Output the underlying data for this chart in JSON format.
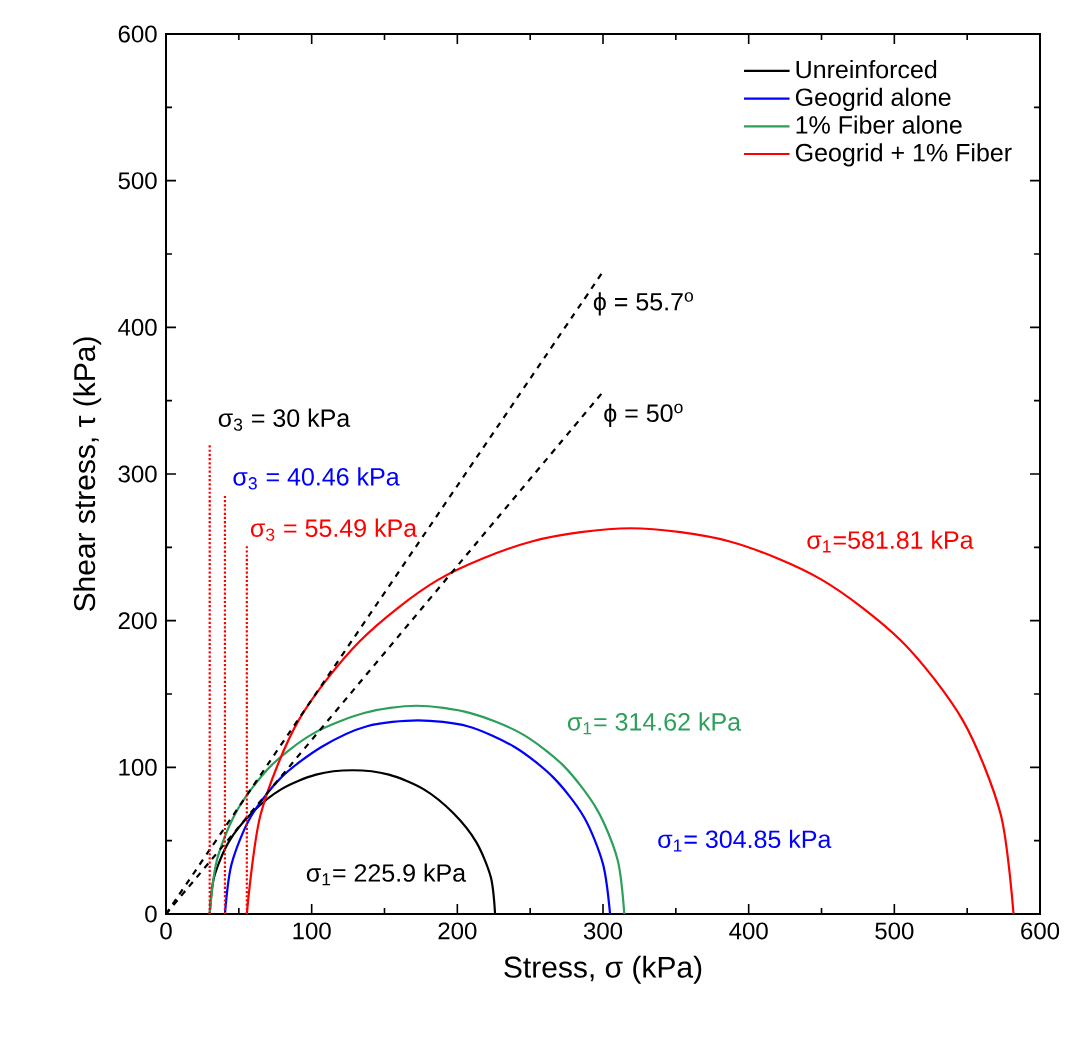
{
  "chart_data": {
    "type": "line",
    "xlabel": "Stress, σ (kPa)",
    "ylabel": "Shear stress, τ (kPa)",
    "xlim": [
      0,
      600
    ],
    "ylim": [
      0,
      600
    ],
    "xticks": [
      0,
      100,
      200,
      300,
      400,
      500,
      600
    ],
    "yticks": [
      0,
      100,
      200,
      300,
      400,
      500,
      600
    ],
    "legend": "top right",
    "marker": "none",
    "line_style": "solid",
    "series": [
      {
        "name": "Unreinforced",
        "color": "#000000",
        "x": [
          30,
          33,
          43,
          59,
          79,
          103,
          128,
          153,
          177,
          197,
          213,
          223,
          225.9
        ],
        "values": [
          0,
          25,
          49,
          69,
          85,
          95,
          98,
          95,
          85,
          69,
          49,
          25,
          0
        ]
      },
      {
        "name": "Geogrid alone",
        "color": "#0000ff",
        "x": [
          40.46,
          45,
          58,
          79,
          107,
          138,
          173,
          207,
          239,
          266,
          287,
          300,
          304.85
        ],
        "values": [
          0,
          34,
          66,
          93,
          114,
          128,
          132,
          128,
          114,
          93,
          66,
          34,
          0
        ]
      },
      {
        "name": "1% Fiber alone",
        "color": "#2ca05a",
        "x": [
          30,
          35,
          49,
          72,
          101,
          136,
          172,
          209,
          244,
          273,
          296,
          310,
          314.62
        ],
        "values": [
          0,
          37,
          71,
          101,
          123,
          137,
          142,
          137,
          123,
          101,
          71,
          37,
          0
        ]
      },
      {
        "name": "Geogrid + 1% Fiber",
        "color": "#ff0000",
        "x": [
          55.49,
          65,
          91,
          133,
          187,
          251,
          319,
          387,
          450,
          505,
          547,
          573,
          581.81
        ],
        "values": [
          0,
          68,
          132,
          186,
          228,
          254,
          263,
          254,
          228,
          186,
          132,
          68,
          0
        ]
      },
      {
        "color": "#000000",
        "line_style": "dashed",
        "x": [
          0,
          300
        ],
        "values": [
          0,
          438
        ]
      },
      {
        "color": "#000000",
        "line_style": "dashed",
        "x": [
          0,
          300
        ],
        "values": [
          0,
          356
        ]
      },
      {
        "color": "#ff0000",
        "line_style": "dotted",
        "x": [
          30,
          30
        ],
        "values": [
          0,
          320
        ]
      },
      {
        "color": "#ff0000",
        "line_style": "dotted",
        "x": [
          40.46,
          40.46
        ],
        "values": [
          0,
          285
        ]
      },
      {
        "color": "#ff0000",
        "line_style": "dotted",
        "x": [
          55.49,
          55.49
        ],
        "values": [
          0,
          251
        ]
      }
    ],
    "annotations": [
      "σ$_{3}$ = 30 kPa",
      "σ$_{3}$ = 40.46 kPa",
      "σ$_{3}$ = 55.49 kPa",
      "σ$_{1}$=581.81 kPa",
      "σ$_{1}$= 314.62 kPa",
      "σ$_{1}$= 304.85 kPa",
      "σ$_{1}$= 225.9 kPa",
      "ϕ = 55.7$^{o}$",
      "ϕ = 50$^{o}$"
    ]
  }
}
